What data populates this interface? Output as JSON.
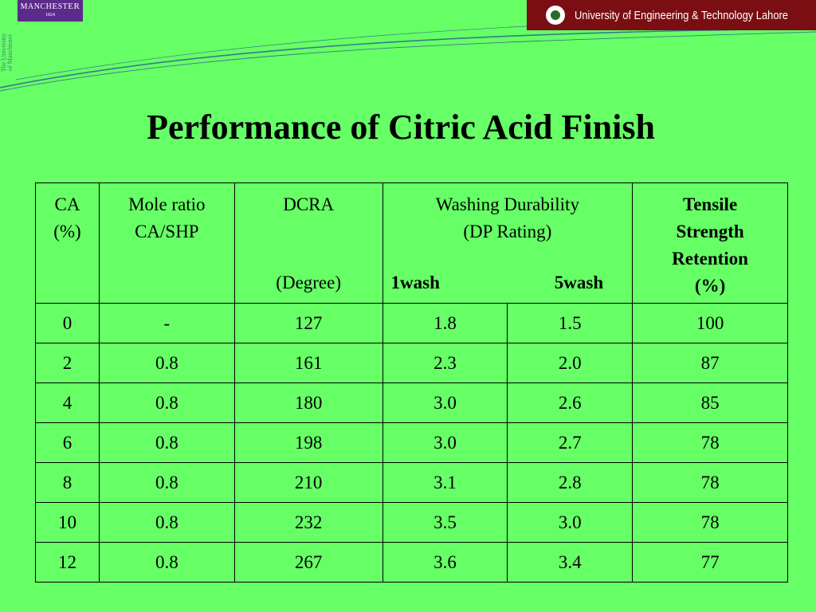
{
  "header": {
    "manchester": {
      "name_part1": "MANCH",
      "name_part2": "E",
      "name_part3": "ST",
      "name_part4": "ER",
      "year": "1824"
    },
    "side_text_line1": "The University",
    "side_text_line2": "of Manchester",
    "university_banner": "University of Engineering & Technology Lahore"
  },
  "slide": {
    "title": "Performance of Citric Acid Finish"
  },
  "table": {
    "headers": {
      "ca_line1": "CA",
      "ca_line2": "(%)",
      "mole_line1": "Mole ratio",
      "mole_line2": "CA/SHP",
      "dcra": "DCRA",
      "dcra_unit": "(Degree)",
      "wash_line1": "Washing Durability",
      "wash_line2": "(DP  Rating)",
      "wash_sub1": "1wash",
      "wash_sub2": "5wash",
      "tensile_line1": "Tensile",
      "tensile_line2": "Strength",
      "tensile_line3": "Retention",
      "tensile_line4": "(%)"
    },
    "rows": [
      {
        "ca": "0",
        "mole": "-",
        "dcra": "127",
        "wash1": "1.8",
        "wash5": "1.5",
        "tensile": "100"
      },
      {
        "ca": "2",
        "mole": "0.8",
        "dcra": "161",
        "wash1": "2.3",
        "wash5": "2.0",
        "tensile": "87"
      },
      {
        "ca": "4",
        "mole": "0.8",
        "dcra": "180",
        "wash1": "3.0",
        "wash5": "2.6",
        "tensile": "85"
      },
      {
        "ca": "6",
        "mole": "0.8",
        "dcra": "198",
        "wash1": "3.0",
        "wash5": "2.7",
        "tensile": "78"
      },
      {
        "ca": "8",
        "mole": "0.8",
        "dcra": "210",
        "wash1": "3.1",
        "wash5": "2.8",
        "tensile": "78"
      },
      {
        "ca": "10",
        "mole": "0.8",
        "dcra": "232",
        "wash1": "3.5",
        "wash5": "3.0",
        "tensile": "78"
      },
      {
        "ca": "12",
        "mole": "0.8",
        "dcra": "267",
        "wash1": "3.6",
        "wash5": "3.4",
        "tensile": "77"
      }
    ]
  },
  "colors": {
    "background": "#66ff66",
    "manchester_purple": "#5c2a8a",
    "uet_maroon": "#7a0e12"
  }
}
